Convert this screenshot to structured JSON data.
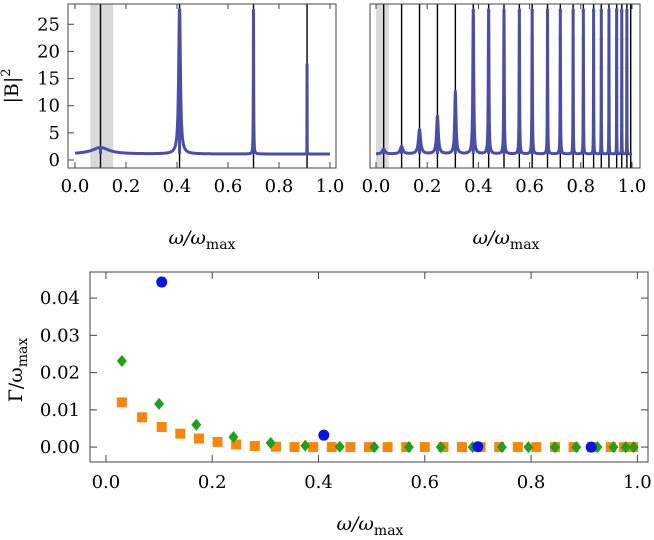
{
  "colors": {
    "spectrum": "#4b4fa3",
    "marker_line": "#000000",
    "shade": "#d9d9d9",
    "blue": "#0a14e0",
    "green": "#1f9e1f",
    "orange": "#f5870f"
  },
  "chart_data": [
    {
      "id": "top-left",
      "type": "line",
      "ylabel_base": "|B|",
      "ylabel_sup": "2",
      "xlabel_main": "ω/ω",
      "xlabel_sub": "max",
      "xlim": [
        0,
        1.0
      ],
      "ylim": [
        0,
        28
      ],
      "xticks": [
        "0.0",
        "0.2",
        "0.4",
        "0.6",
        "0.8",
        "1.0"
      ],
      "yticks": [
        "0",
        "5",
        "10",
        "15",
        "20",
        "25"
      ],
      "shaded_band": [
        0.06,
        0.15
      ],
      "vertical_lines": [
        0.1,
        0.41,
        0.7,
        0.91
      ],
      "peaks": [
        {
          "x": 0.1,
          "height": 2.3,
          "width": 0.04
        },
        {
          "x": 0.41,
          "height": 27.5,
          "width": 0.004
        },
        {
          "x": 0.7,
          "height": 26.5,
          "width": 0.0008
        },
        {
          "x": 0.91,
          "height": 16.5,
          "width": 0.0002
        }
      ],
      "baseline": 1.1
    },
    {
      "id": "top-right",
      "type": "line",
      "xlabel_main": "ω/ω",
      "xlabel_sub": "max",
      "xlim": [
        0,
        1.0
      ],
      "ylim": [
        0,
        28
      ],
      "xticks": [
        "0.0",
        "0.2",
        "0.4",
        "0.6",
        "0.8",
        "1.0"
      ],
      "shaded_band": [
        0.0,
        0.05
      ],
      "vertical_lines": [
        0.03,
        0.1,
        0.17,
        0.24,
        0.31,
        0.38,
        0.44,
        0.5,
        0.56,
        0.61,
        0.67,
        0.72,
        0.77,
        0.81,
        0.85,
        0.88,
        0.91,
        0.94,
        0.96,
        0.98,
        0.995
      ],
      "peaks": [
        {
          "x": 0.03,
          "height": 2.0,
          "width": 0.006
        },
        {
          "x": 0.1,
          "height": 2.5,
          "width": 0.006
        },
        {
          "x": 0.17,
          "height": 4.5,
          "width": 0.005
        },
        {
          "x": 0.24,
          "height": 7.0,
          "width": 0.004
        },
        {
          "x": 0.31,
          "height": 11.5,
          "width": 0.003
        },
        {
          "x": 0.38,
          "height": 27.5,
          "width": 0.002
        },
        {
          "x": 0.44,
          "height": 27.5,
          "width": 0.0015
        },
        {
          "x": 0.5,
          "height": 27.5,
          "width": 0.0012
        },
        {
          "x": 0.56,
          "height": 27.5,
          "width": 0.001
        },
        {
          "x": 0.61,
          "height": 27.5,
          "width": 0.001
        },
        {
          "x": 0.67,
          "height": 27.5,
          "width": 0.0008
        },
        {
          "x": 0.72,
          "height": 27.5,
          "width": 0.0008
        },
        {
          "x": 0.77,
          "height": 27.5,
          "width": 0.0006
        },
        {
          "x": 0.81,
          "height": 27.5,
          "width": 0.0006
        },
        {
          "x": 0.85,
          "height": 27.5,
          "width": 0.0005
        },
        {
          "x": 0.88,
          "height": 27.5,
          "width": 0.0004
        },
        {
          "x": 0.91,
          "height": 27.5,
          "width": 0.0004
        },
        {
          "x": 0.94,
          "height": 27.5,
          "width": 0.0003
        },
        {
          "x": 0.96,
          "height": 27.5,
          "width": 0.0003
        },
        {
          "x": 0.98,
          "height": 27.5,
          "width": 0.0003
        }
      ],
      "baseline": 1.1
    },
    {
      "id": "bottom",
      "type": "scatter",
      "ylabel_main": "Γ/ω",
      "ylabel_sub": "max",
      "xlabel_main": "ω/ω",
      "xlabel_sub": "max",
      "xlim": [
        -0.03,
        1.02
      ],
      "ylim": [
        -0.004,
        0.047
      ],
      "xticks": [
        0.0,
        0.2,
        0.4,
        0.6,
        0.8,
        1.0
      ],
      "xtick_labels": [
        "0.0",
        "0.2",
        "0.4",
        "0.6",
        "0.8",
        "1.0"
      ],
      "yticks": [
        0.0,
        0.01,
        0.02,
        0.03,
        0.04
      ],
      "ytick_labels": [
        "0.00",
        "0.01",
        "0.02",
        "0.03",
        "0.04"
      ],
      "series": [
        {
          "marker": "circle",
          "color": "#0a14e0",
          "points": [
            [
              0.105,
              0.0443
            ],
            [
              0.41,
              0.0032
            ],
            [
              0.7,
              0.0001
            ],
            [
              0.913,
              0.0
            ]
          ]
        },
        {
          "marker": "diamond",
          "color": "#1f9e1f",
          "points": [
            [
              0.03,
              0.0231
            ],
            [
              0.1,
              0.0116
            ],
            [
              0.17,
              0.006
            ],
            [
              0.24,
              0.0027
            ],
            [
              0.31,
              0.0011
            ],
            [
              0.375,
              0.0004
            ],
            [
              0.44,
              0.0001
            ],
            [
              0.505,
              0.0
            ],
            [
              0.57,
              0.0
            ],
            [
              0.63,
              0.0
            ],
            [
              0.69,
              0.0
            ],
            [
              0.745,
              0.0
            ],
            [
              0.795,
              0.0
            ],
            [
              0.845,
              0.0
            ],
            [
              0.885,
              0.0
            ],
            [
              0.925,
              0.0
            ],
            [
              0.955,
              0.0
            ],
            [
              0.978,
              0.0
            ],
            [
              0.993,
              0.0
            ]
          ]
        },
        {
          "marker": "square",
          "color": "#f5870f",
          "points": [
            [
              0.03,
              0.012
            ],
            [
              0.068,
              0.008
            ],
            [
              0.105,
              0.0054
            ],
            [
              0.14,
              0.0036
            ],
            [
              0.175,
              0.0023
            ],
            [
              0.21,
              0.0014
            ],
            [
              0.245,
              0.0007
            ],
            [
              0.28,
              0.0003
            ],
            [
              0.32,
              0.0001
            ],
            [
              0.355,
              0.0
            ],
            [
              0.39,
              0.0
            ],
            [
              0.425,
              0.0
            ],
            [
              0.46,
              0.0
            ],
            [
              0.495,
              0.0
            ],
            [
              0.53,
              0.0
            ],
            [
              0.565,
              0.0
            ],
            [
              0.6,
              0.0
            ],
            [
              0.635,
              0.0
            ],
            [
              0.67,
              0.0
            ],
            [
              0.705,
              0.0
            ],
            [
              0.74,
              0.0
            ],
            [
              0.775,
              0.0
            ],
            [
              0.81,
              0.0
            ],
            [
              0.845,
              0.0
            ],
            [
              0.88,
              0.0
            ],
            [
              0.915,
              0.0
            ],
            [
              0.95,
              0.0
            ],
            [
              0.975,
              0.0
            ],
            [
              0.992,
              0.0
            ]
          ]
        }
      ]
    }
  ]
}
